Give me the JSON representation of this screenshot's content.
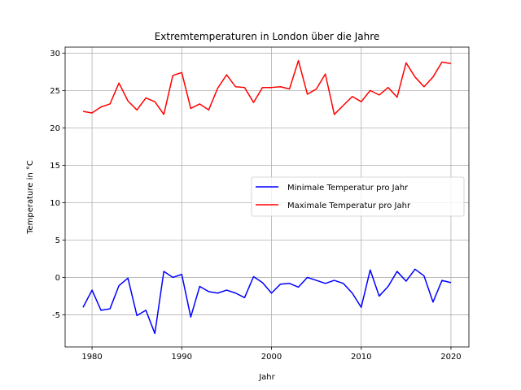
{
  "chart_data": {
    "type": "line",
    "title": "Extremtemperaturen in London über die Jahre",
    "xlabel": "Jahr",
    "ylabel": "Temperature in °C",
    "xlim": [
      1977,
      2022
    ],
    "ylim": [
      -9.3,
      30.8
    ],
    "xticks": [
      1980,
      1990,
      2000,
      2010,
      2020
    ],
    "yticks": [
      -5,
      0,
      5,
      10,
      15,
      20,
      25,
      30
    ],
    "grid": true,
    "legend_position": "center-right",
    "x": [
      1979,
      1980,
      1981,
      1982,
      1983,
      1984,
      1985,
      1986,
      1987,
      1988,
      1989,
      1990,
      1991,
      1992,
      1993,
      1994,
      1995,
      1996,
      1997,
      1998,
      1999,
      2000,
      2001,
      2002,
      2003,
      2004,
      2005,
      2006,
      2007,
      2008,
      2009,
      2010,
      2011,
      2012,
      2013,
      2014,
      2015,
      2016,
      2017,
      2018,
      2019,
      2020
    ],
    "series": [
      {
        "name": "Minimale Temperatur pro Jahr",
        "color": "#0000ff",
        "values": [
          -4.0,
          -1.7,
          -4.4,
          -4.2,
          -1.1,
          -0.1,
          -5.1,
          -4.4,
          -7.5,
          0.8,
          0.0,
          0.4,
          -5.3,
          -1.2,
          -1.9,
          -2.1,
          -1.7,
          -2.1,
          -2.7,
          0.1,
          -0.7,
          -2.1,
          -0.9,
          -0.8,
          -1.3,
          0.0,
          -0.4,
          -0.8,
          -0.4,
          -0.8,
          -2.1,
          -4.0,
          1.0,
          -2.5,
          -1.2,
          0.8,
          -0.5,
          1.1,
          0.2,
          -3.3,
          -0.4,
          -0.7
        ]
      },
      {
        "name": "Maximale Temperatur pro Jahr",
        "color": "#ff0000",
        "values": [
          22.2,
          22.0,
          22.8,
          23.2,
          26.0,
          23.6,
          22.4,
          24.0,
          23.5,
          21.8,
          27.0,
          27.4,
          22.6,
          23.2,
          22.4,
          25.3,
          27.1,
          25.5,
          25.4,
          23.4,
          25.4,
          25.4,
          25.5,
          25.2,
          29.0,
          24.5,
          25.2,
          27.2,
          21.8,
          23.0,
          24.2,
          23.5,
          25.0,
          24.4,
          25.4,
          24.1,
          28.7,
          26.8,
          25.5,
          26.8,
          28.8,
          28.6
        ]
      }
    ]
  }
}
